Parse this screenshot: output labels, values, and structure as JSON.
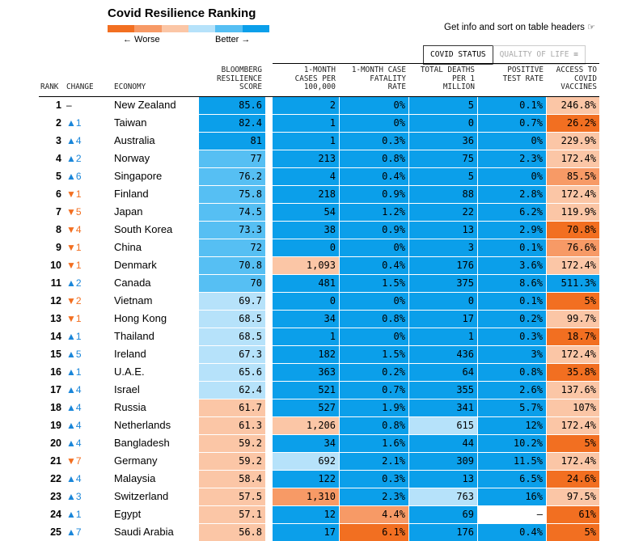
{
  "header": {
    "title": "Covid Resilience Ranking",
    "legend_worse": "← Worse",
    "legend_better": "Better →",
    "legend_colors": [
      "#f26f21",
      "#f79a66",
      "#fbc6a6",
      "#b6e2fa",
      "#56bff3",
      "#0b9fea"
    ],
    "info_text": "Get info and sort on table headers"
  },
  "tabs": [
    {
      "label": "COVID STATUS",
      "active": true
    },
    {
      "label": "QUALITY OF LIFE",
      "active": false
    }
  ],
  "columns": {
    "rank": "RANK",
    "change": "CHANGE",
    "economy": "ECONOMY",
    "score": "BLOOMBERG\nRESILIENCE\nSCORE",
    "cases": "1-MONTH\nCASES PER\n100,000",
    "cfr": "1-MONTH CASE\nFATALITY\nRATE",
    "deaths": "TOTAL DEATHS\nPER 1\nMILLION",
    "positive": "POSITIVE\nTEST RATE",
    "vaccines": "ACCESS TO\nCOVID\nVACCINES"
  },
  "colors": {
    "dark_blue": "#0b9fea",
    "mid_blue": "#56bff3",
    "light_blue": "#b6e2fa",
    "light_orange": "#fbc6a6",
    "mid_orange": "#f79a66",
    "dark_orange": "#f26f21",
    "none": "#ffffff",
    "up_arrow": "#1a86d9",
    "down_arrow": "#f26f21"
  },
  "chart_data": {
    "type": "table",
    "title": "Covid Resilience Ranking",
    "rows": [
      {
        "rank": "1",
        "dir": "none",
        "chg": "–",
        "economy": "New Zealand",
        "score": "85.6",
        "cases": "2",
        "cfr": "0%",
        "deaths": "5",
        "positive": "0.1%",
        "vaccines": "246.8%",
        "c": [
          "db",
          "db",
          "db",
          "db",
          "db",
          "lo"
        ]
      },
      {
        "rank": "2",
        "dir": "up",
        "chg": "1",
        "economy": "Taiwan",
        "score": "82.4",
        "cases": "1",
        "cfr": "0%",
        "deaths": "0",
        "positive": "0.7%",
        "vaccines": "26.2%",
        "c": [
          "db",
          "db",
          "db",
          "db",
          "db",
          "do"
        ]
      },
      {
        "rank": "3",
        "dir": "up",
        "chg": "4",
        "economy": "Australia",
        "score": "81",
        "cases": "1",
        "cfr": "0.3%",
        "deaths": "36",
        "positive": "0%",
        "vaccines": "229.9%",
        "c": [
          "db",
          "db",
          "db",
          "db",
          "db",
          "lo"
        ]
      },
      {
        "rank": "4",
        "dir": "up",
        "chg": "2",
        "economy": "Norway",
        "score": "77",
        "cases": "213",
        "cfr": "0.8%",
        "deaths": "75",
        "positive": "2.3%",
        "vaccines": "172.4%",
        "c": [
          "mb",
          "db",
          "db",
          "db",
          "db",
          "lo"
        ]
      },
      {
        "rank": "5",
        "dir": "up",
        "chg": "6",
        "economy": "Singapore",
        "score": "76.2",
        "cases": "4",
        "cfr": "0.4%",
        "deaths": "5",
        "positive": "0%",
        "vaccines": "85.5%",
        "c": [
          "mb",
          "db",
          "db",
          "db",
          "db",
          "mo"
        ]
      },
      {
        "rank": "6",
        "dir": "down",
        "chg": "1",
        "economy": "Finland",
        "score": "75.8",
        "cases": "218",
        "cfr": "0.9%",
        "deaths": "88",
        "positive": "2.8%",
        "vaccines": "172.4%",
        "c": [
          "mb",
          "db",
          "db",
          "db",
          "db",
          "lo"
        ]
      },
      {
        "rank": "7",
        "dir": "down",
        "chg": "5",
        "economy": "Japan",
        "score": "74.5",
        "cases": "54",
        "cfr": "1.2%",
        "deaths": "22",
        "positive": "6.2%",
        "vaccines": "119.9%",
        "c": [
          "mb",
          "db",
          "db",
          "db",
          "db",
          "lo"
        ]
      },
      {
        "rank": "8",
        "dir": "down",
        "chg": "4",
        "economy": "South Korea",
        "score": "73.3",
        "cases": "38",
        "cfr": "0.9%",
        "deaths": "13",
        "positive": "2.9%",
        "vaccines": "70.8%",
        "c": [
          "mb",
          "db",
          "db",
          "db",
          "db",
          "do"
        ]
      },
      {
        "rank": "9",
        "dir": "down",
        "chg": "1",
        "economy": "China",
        "score": "72",
        "cases": "0",
        "cfr": "0%",
        "deaths": "3",
        "positive": "0.1%",
        "vaccines": "76.6%",
        "c": [
          "mb",
          "db",
          "db",
          "db",
          "db",
          "mo"
        ]
      },
      {
        "rank": "10",
        "dir": "down",
        "chg": "1",
        "economy": "Denmark",
        "score": "70.8",
        "cases": "1,093",
        "cfr": "0.4%",
        "deaths": "176",
        "positive": "3.6%",
        "vaccines": "172.4%",
        "c": [
          "mb",
          "lo",
          "db",
          "db",
          "db",
          "lo"
        ]
      },
      {
        "rank": "11",
        "dir": "up",
        "chg": "2",
        "economy": "Canada",
        "score": "70",
        "cases": "481",
        "cfr": "1.5%",
        "deaths": "375",
        "positive": "8.6%",
        "vaccines": "511.3%",
        "c": [
          "mb",
          "db",
          "db",
          "db",
          "db",
          "db"
        ]
      },
      {
        "rank": "12",
        "dir": "down",
        "chg": "2",
        "economy": "Vietnam",
        "score": "69.7",
        "cases": "0",
        "cfr": "0%",
        "deaths": "0",
        "positive": "0.1%",
        "vaccines": "5%",
        "c": [
          "lb",
          "db",
          "db",
          "db",
          "db",
          "do"
        ]
      },
      {
        "rank": "13",
        "dir": "down",
        "chg": "1",
        "economy": "Hong Kong",
        "score": "68.5",
        "cases": "34",
        "cfr": "0.8%",
        "deaths": "17",
        "positive": "0.2%",
        "vaccines": "99.7%",
        "c": [
          "lb",
          "db",
          "db",
          "db",
          "db",
          "lo"
        ]
      },
      {
        "rank": "14",
        "dir": "up",
        "chg": "1",
        "economy": "Thailand",
        "score": "68.5",
        "cases": "1",
        "cfr": "0%",
        "deaths": "1",
        "positive": "0.3%",
        "vaccines": "18.7%",
        "c": [
          "lb",
          "db",
          "db",
          "db",
          "db",
          "do"
        ]
      },
      {
        "rank": "15",
        "dir": "up",
        "chg": "5",
        "economy": "Ireland",
        "score": "67.3",
        "cases": "182",
        "cfr": "1.5%",
        "deaths": "436",
        "positive": "3%",
        "vaccines": "172.4%",
        "c": [
          "lb",
          "db",
          "db",
          "db",
          "db",
          "lo"
        ]
      },
      {
        "rank": "16",
        "dir": "up",
        "chg": "1",
        "economy": "U.A.E.",
        "score": "65.6",
        "cases": "363",
        "cfr": "0.2%",
        "deaths": "64",
        "positive": "0.8%",
        "vaccines": "35.8%",
        "c": [
          "lb",
          "db",
          "db",
          "db",
          "db",
          "do"
        ]
      },
      {
        "rank": "17",
        "dir": "up",
        "chg": "4",
        "economy": "Israel",
        "score": "62.4",
        "cases": "521",
        "cfr": "0.7%",
        "deaths": "355",
        "positive": "2.6%",
        "vaccines": "137.6%",
        "c": [
          "lb",
          "db",
          "db",
          "db",
          "db",
          "lo"
        ]
      },
      {
        "rank": "18",
        "dir": "up",
        "chg": "4",
        "economy": "Russia",
        "score": "61.7",
        "cases": "527",
        "cfr": "1.9%",
        "deaths": "341",
        "positive": "5.7%",
        "vaccines": "107%",
        "c": [
          "lo",
          "db",
          "db",
          "db",
          "db",
          "lo"
        ]
      },
      {
        "rank": "19",
        "dir": "up",
        "chg": "4",
        "economy": "Netherlands",
        "score": "61.3",
        "cases": "1,206",
        "cfr": "0.8%",
        "deaths": "615",
        "positive": "12%",
        "vaccines": "172.4%",
        "c": [
          "lo",
          "lo",
          "db",
          "lb",
          "db",
          "lo"
        ]
      },
      {
        "rank": "20",
        "dir": "up",
        "chg": "4",
        "economy": "Bangladesh",
        "score": "59.2",
        "cases": "34",
        "cfr": "1.6%",
        "deaths": "44",
        "positive": "10.2%",
        "vaccines": "5%",
        "c": [
          "lo",
          "db",
          "db",
          "db",
          "db",
          "do"
        ]
      },
      {
        "rank": "21",
        "dir": "down",
        "chg": "7",
        "economy": "Germany",
        "score": "59.2",
        "cases": "692",
        "cfr": "2.1%",
        "deaths": "309",
        "positive": "11.5%",
        "vaccines": "172.4%",
        "c": [
          "lo",
          "lb",
          "db",
          "db",
          "db",
          "lo"
        ]
      },
      {
        "rank": "22",
        "dir": "up",
        "chg": "4",
        "economy": "Malaysia",
        "score": "58.4",
        "cases": "122",
        "cfr": "0.3%",
        "deaths": "13",
        "positive": "6.5%",
        "vaccines": "24.6%",
        "c": [
          "lo",
          "db",
          "db",
          "db",
          "db",
          "do"
        ]
      },
      {
        "rank": "23",
        "dir": "up",
        "chg": "3",
        "economy": "Switzerland",
        "score": "57.5",
        "cases": "1,310",
        "cfr": "2.3%",
        "deaths": "763",
        "positive": "16%",
        "vaccines": "97.5%",
        "c": [
          "lo",
          "mo",
          "db",
          "lb",
          "db",
          "lo"
        ]
      },
      {
        "rank": "24",
        "dir": "up",
        "chg": "1",
        "economy": "Egypt",
        "score": "57.1",
        "cases": "12",
        "cfr": "4.4%",
        "deaths": "69",
        "positive": "–",
        "vaccines": "61%",
        "c": [
          "lo",
          "db",
          "mo",
          "db",
          "no",
          "do"
        ]
      },
      {
        "rank": "25",
        "dir": "up",
        "chg": "7",
        "economy": "Saudi Arabia",
        "score": "56.8",
        "cases": "17",
        "cfr": "6.1%",
        "deaths": "176",
        "positive": "0.4%",
        "vaccines": "5%",
        "c": [
          "lo",
          "db",
          "do",
          "db",
          "db",
          "do"
        ]
      }
    ]
  }
}
